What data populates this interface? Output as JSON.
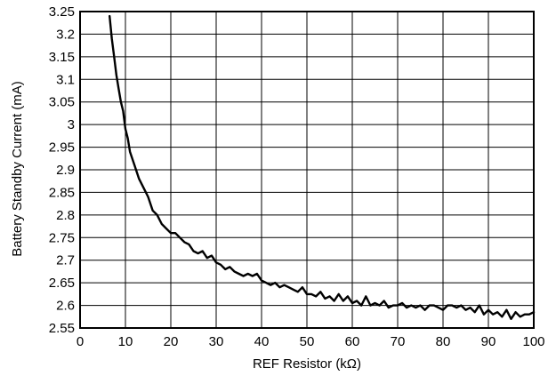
{
  "chart_data": {
    "type": "line",
    "xlabel": "REF Resistor (kΩ)",
    "ylabel": "Battery Standby Current (mA)",
    "xlim": [
      0,
      100
    ],
    "ylim": [
      2.55,
      3.25
    ],
    "grid": true,
    "x_ticks": [
      "0",
      "10",
      "20",
      "30",
      "40",
      "50",
      "60",
      "70",
      "80",
      "90",
      "100"
    ],
    "y_ticks": [
      "2.55",
      "2.6",
      "2.65",
      "2.7",
      "2.75",
      "2.8",
      "2.85",
      "2.9",
      "2.95",
      "3",
      "3.05",
      "3.1",
      "3.15",
      "3.2",
      "3.25"
    ],
    "series": [
      {
        "color": "#000000",
        "x": [
          6.5,
          7,
          7.5,
          8,
          8.5,
          9,
          9.5,
          10,
          10.5,
          11,
          12,
          13,
          14,
          15,
          16,
          17,
          18,
          19,
          20,
          21,
          22,
          23,
          24,
          25,
          26,
          27,
          28,
          29,
          30,
          31,
          32,
          33,
          34,
          35,
          36,
          37,
          38,
          39,
          40,
          41,
          42,
          43,
          44,
          45,
          46,
          47,
          48,
          49,
          50,
          51,
          52,
          53,
          54,
          55,
          56,
          57,
          58,
          59,
          60,
          61,
          62,
          63,
          64,
          65,
          66,
          67,
          68,
          69,
          70,
          71,
          72,
          73,
          74,
          75,
          76,
          77,
          78,
          79,
          80,
          81,
          82,
          83,
          84,
          85,
          86,
          87,
          88,
          89,
          90,
          91,
          92,
          93,
          94,
          95,
          96,
          97,
          98,
          99,
          100
        ],
        "y": [
          3.24,
          3.19,
          3.15,
          3.11,
          3.08,
          3.05,
          3.03,
          2.99,
          2.97,
          2.94,
          2.91,
          2.88,
          2.86,
          2.84,
          2.81,
          2.8,
          2.78,
          2.77,
          2.76,
          2.76,
          2.75,
          2.74,
          2.735,
          2.72,
          2.715,
          2.72,
          2.705,
          2.71,
          2.695,
          2.69,
          2.68,
          2.685,
          2.675,
          2.67,
          2.665,
          2.67,
          2.665,
          2.67,
          2.655,
          2.65,
          2.645,
          2.65,
          2.64,
          2.645,
          2.64,
          2.635,
          2.63,
          2.64,
          2.625,
          2.625,
          2.62,
          2.63,
          2.615,
          2.62,
          2.61,
          2.625,
          2.61,
          2.62,
          2.605,
          2.61,
          2.6,
          2.62,
          2.6,
          2.605,
          2.6,
          2.61,
          2.595,
          2.6,
          2.6,
          2.605,
          2.595,
          2.6,
          2.595,
          2.6,
          2.59,
          2.6,
          2.6,
          2.595,
          2.59,
          2.6,
          2.6,
          2.595,
          2.6,
          2.59,
          2.595,
          2.585,
          2.6,
          2.58,
          2.59,
          2.58,
          2.585,
          2.575,
          2.59,
          2.57,
          2.585,
          2.575,
          2.58,
          2.58,
          2.585
        ]
      }
    ]
  }
}
